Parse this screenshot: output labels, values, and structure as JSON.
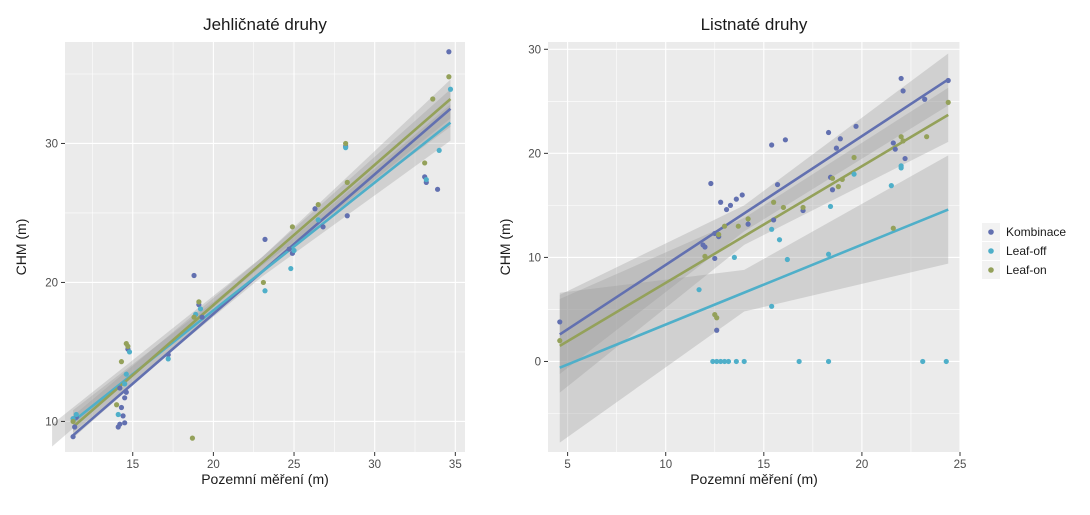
{
  "colors": {
    "Kombinace": "#6270b0",
    "Leaf-off": "#4fafc9",
    "Leaf-on": "#94a15a",
    "panel": "#ebebeb",
    "grid": "#ffffff",
    "band": "#999999"
  },
  "legend": {
    "items": [
      "Kombinace",
      "Leaf-off",
      "Leaf-on"
    ],
    "placement": "right"
  },
  "chart_data": [
    {
      "type": "scatter",
      "title": "Jehličnaté druhy",
      "xlabel": "Pozemní měření (m)",
      "ylabel": "CHM (m)",
      "xlim": [
        10.8,
        35.6
      ],
      "ylim": [
        7.8,
        37.3
      ],
      "xticks": [
        15,
        20,
        25,
        30,
        35
      ],
      "yticks": [
        10,
        20,
        30
      ],
      "series": [
        {
          "name": "Kombinace",
          "fit": {
            "x": [
              11.3,
              34.7
            ],
            "y": [
              9.0,
              32.5
            ],
            "ci": [
              [
                10.0,
                8.2,
                9.8
              ],
              [
                23.0,
                21.2,
                21.8
              ],
              [
                34.7,
                31.2,
                33.9
              ]
            ]
          },
          "points": [
            [
              11.3,
              8.9
            ],
            [
              11.4,
              9.6
            ],
            [
              11.5,
              10.3
            ],
            [
              14.1,
              9.6
            ],
            [
              14.2,
              9.8
            ],
            [
              14.4,
              10.4
            ],
            [
              14.5,
              9.9
            ],
            [
              14.3,
              11.0
            ],
            [
              14.5,
              11.7
            ],
            [
              14.6,
              12.1
            ],
            [
              14.7,
              15.2
            ],
            [
              14.2,
              12.4
            ],
            [
              17.2,
              14.8
            ],
            [
              18.8,
              20.5
            ],
            [
              19.1,
              18.4
            ],
            [
              19.3,
              17.5
            ],
            [
              23.2,
              23.1
            ],
            [
              24.7,
              22.4
            ],
            [
              24.9,
              22.1
            ],
            [
              26.3,
              25.3
            ],
            [
              26.8,
              24.0
            ],
            [
              28.2,
              29.8
            ],
            [
              28.3,
              24.8
            ],
            [
              33.1,
              27.6
            ],
            [
              33.2,
              27.2
            ],
            [
              33.9,
              26.7
            ],
            [
              34.6,
              36.6
            ]
          ]
        },
        {
          "name": "Leaf-off",
          "fit": {
            "x": [
              11.3,
              34.7
            ],
            "y": [
              10.0,
              31.5
            ],
            "ci": [
              [
                11.3,
                9.2,
                10.8
              ],
              [
                23.0,
                20.4,
                21.3
              ],
              [
                34.7,
                30.2,
                32.8
              ]
            ]
          },
          "points": [
            [
              11.3,
              10.2
            ],
            [
              11.5,
              10.5
            ],
            [
              14.1,
              10.5
            ],
            [
              14.5,
              12.7
            ],
            [
              14.6,
              13.4
            ],
            [
              14.8,
              15.0
            ],
            [
              17.2,
              14.5
            ],
            [
              18.9,
              17.7
            ],
            [
              19.2,
              18.1
            ],
            [
              23.2,
              19.4
            ],
            [
              24.8,
              21.0
            ],
            [
              25.0,
              22.3
            ],
            [
              26.5,
              24.5
            ],
            [
              28.2,
              29.7
            ],
            [
              33.2,
              27.4
            ],
            [
              34.0,
              29.5
            ],
            [
              34.7,
              33.9
            ]
          ]
        },
        {
          "name": "Leaf-on",
          "fit": {
            "x": [
              11.3,
              34.7
            ],
            "y": [
              9.6,
              33.2
            ],
            "ci": [
              [
                11.3,
                8.8,
                10.4
              ],
              [
                23.0,
                20.8,
                21.8
              ],
              [
                34.7,
                31.8,
                34.6
              ]
            ]
          },
          "points": [
            [
              11.3,
              10.0
            ],
            [
              14.0,
              11.2
            ],
            [
              14.3,
              14.3
            ],
            [
              14.6,
              15.6
            ],
            [
              14.7,
              15.4
            ],
            [
              18.7,
              8.8
            ],
            [
              18.8,
              17.5
            ],
            [
              19.1,
              18.6
            ],
            [
              23.1,
              20.0
            ],
            [
              24.9,
              24.0
            ],
            [
              26.5,
              25.6
            ],
            [
              28.2,
              30.0
            ],
            [
              28.3,
              27.2
            ],
            [
              33.1,
              28.6
            ],
            [
              33.6,
              33.2
            ],
            [
              34.6,
              34.8
            ]
          ]
        }
      ]
    },
    {
      "type": "scatter",
      "title": "Listnaté druhy",
      "xlabel": "Pozemní měření (m)",
      "ylabel": "CHM (m)",
      "xlim": [
        4.0,
        25.0
      ],
      "ylim": [
        -8.7,
        30.7
      ],
      "xticks": [
        5,
        10,
        15,
        20,
        25
      ],
      "yticks": [
        0,
        10,
        20,
        30
      ],
      "series": [
        {
          "name": "Kombinace",
          "fit": {
            "x": [
              4.6,
              24.4
            ],
            "y": [
              2.6,
              27.1
            ],
            "ci": [
              [
                4.6,
                -1.2,
                6.4
              ],
              [
                14.0,
                12.5,
                15.0
              ],
              [
                24.4,
                24.6,
                29.6
              ]
            ]
          },
          "points": [
            [
              4.6,
              3.8
            ],
            [
              11.9,
              11.2
            ],
            [
              12.0,
              11.0
            ],
            [
              12.3,
              17.1
            ],
            [
              12.5,
              12.3
            ],
            [
              12.5,
              9.9
            ],
            [
              12.6,
              3.0
            ],
            [
              12.7,
              12.0
            ],
            [
              12.8,
              15.3
            ],
            [
              13.1,
              14.6
            ],
            [
              13.3,
              15.0
            ],
            [
              13.6,
              15.6
            ],
            [
              13.9,
              16.0
            ],
            [
              14.2,
              13.2
            ],
            [
              15.4,
              20.8
            ],
            [
              15.5,
              13.6
            ],
            [
              15.7,
              17.0
            ],
            [
              16.1,
              21.3
            ],
            [
              17.0,
              14.5
            ],
            [
              18.3,
              22.0
            ],
            [
              18.4,
              17.7
            ],
            [
              18.5,
              16.5
            ],
            [
              18.7,
              20.5
            ],
            [
              18.9,
              21.4
            ],
            [
              19.7,
              22.6
            ],
            [
              21.6,
              21.0
            ],
            [
              21.7,
              20.4
            ],
            [
              22.0,
              27.2
            ],
            [
              22.1,
              26.0
            ],
            [
              22.2,
              19.5
            ],
            [
              23.2,
              25.2
            ],
            [
              24.4,
              27.0
            ]
          ]
        },
        {
          "name": "Leaf-off",
          "fit": {
            "x": [
              4.6,
              24.4
            ],
            "y": [
              -0.6,
              14.6
            ],
            "ci": [
              [
                4.6,
                -7.8,
                6.6
              ],
              [
                14.0,
                4.8,
                8.8
              ],
              [
                24.4,
                9.4,
                19.8
              ]
            ]
          },
          "points": [
            [
              11.7,
              6.9
            ],
            [
              12.4,
              0.0
            ],
            [
              12.6,
              0.0
            ],
            [
              12.8,
              0.0
            ],
            [
              13.0,
              0.0
            ],
            [
              13.2,
              0.0
            ],
            [
              13.5,
              10.0
            ],
            [
              13.6,
              0.0
            ],
            [
              14.0,
              0.0
            ],
            [
              15.4,
              5.3
            ],
            [
              15.4,
              12.7
            ],
            [
              15.8,
              11.7
            ],
            [
              16.2,
              9.8
            ],
            [
              16.8,
              0.0
            ],
            [
              18.3,
              0.0
            ],
            [
              18.3,
              10.3
            ],
            [
              18.4,
              14.9
            ],
            [
              19.6,
              18.0
            ],
            [
              21.5,
              16.9
            ],
            [
              22.0,
              18.6
            ],
            [
              22.0,
              18.8
            ],
            [
              23.1,
              0.0
            ],
            [
              24.3,
              0.0
            ]
          ]
        },
        {
          "name": "Leaf-on",
          "fit": {
            "x": [
              4.6,
              24.4
            ],
            "y": [
              1.5,
              23.7
            ],
            "ci": [
              [
                4.6,
                -3.0,
                6.0
              ],
              [
                14.0,
                11.2,
                13.8
              ],
              [
                24.4,
                21.1,
                26.3
              ]
            ]
          },
          "points": [
            [
              4.6,
              2.0
            ],
            [
              12.0,
              10.1
            ],
            [
              12.5,
              4.5
            ],
            [
              12.6,
              4.2
            ],
            [
              12.7,
              12.2
            ],
            [
              13.0,
              13.0
            ],
            [
              13.7,
              13.0
            ],
            [
              14.2,
              13.7
            ],
            [
              15.5,
              15.3
            ],
            [
              16.0,
              14.8
            ],
            [
              17.0,
              14.8
            ],
            [
              18.5,
              17.6
            ],
            [
              18.8,
              16.8
            ],
            [
              19.0,
              17.5
            ],
            [
              19.6,
              19.6
            ],
            [
              21.6,
              12.8
            ],
            [
              22.0,
              21.6
            ],
            [
              22.1,
              21.2
            ],
            [
              23.3,
              21.6
            ],
            [
              24.4,
              24.9
            ]
          ]
        }
      ]
    }
  ]
}
